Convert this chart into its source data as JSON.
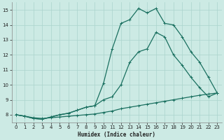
{
  "xlabel": "Humidex (Indice chaleur)",
  "xlim": [
    -0.5,
    23.5
  ],
  "ylim": [
    7.5,
    15.5
  ],
  "yticks": [
    8,
    9,
    10,
    11,
    12,
    13,
    14,
    15
  ],
  "xticks": [
    0,
    1,
    2,
    3,
    4,
    5,
    6,
    7,
    8,
    9,
    10,
    11,
    12,
    13,
    14,
    15,
    16,
    17,
    18,
    19,
    20,
    21,
    22,
    23
  ],
  "background_color": "#cceae4",
  "grid_color": "#aad4cc",
  "line_color": "#1a7060",
  "line1_x": [
    0,
    1,
    2,
    3,
    4,
    5,
    6,
    7,
    8,
    9,
    10,
    11,
    12,
    13,
    14,
    15,
    16,
    17,
    18,
    19,
    20,
    21,
    22,
    23
  ],
  "line1_y": [
    8.0,
    7.9,
    7.8,
    7.75,
    7.8,
    7.85,
    7.9,
    7.95,
    8.0,
    8.05,
    8.15,
    8.25,
    8.4,
    8.5,
    8.6,
    8.7,
    8.8,
    8.9,
    9.0,
    9.1,
    9.2,
    9.3,
    9.38,
    9.45
  ],
  "line2_x": [
    0,
    1,
    2,
    3,
    4,
    5,
    6,
    7,
    8,
    9,
    10,
    11,
    12,
    13,
    14,
    15,
    16,
    17,
    18,
    19,
    20,
    21,
    22,
    23
  ],
  "line2_y": [
    8.0,
    7.9,
    7.75,
    7.7,
    7.85,
    8.0,
    8.1,
    8.3,
    8.5,
    8.6,
    9.0,
    9.2,
    10.0,
    11.5,
    12.2,
    12.4,
    13.5,
    13.2,
    12.0,
    11.3,
    10.5,
    9.8,
    9.2,
    9.45
  ],
  "line3_x": [
    0,
    1,
    2,
    3,
    4,
    5,
    6,
    7,
    8,
    9,
    10,
    11,
    12,
    13,
    14,
    15,
    16,
    17,
    18,
    19,
    20,
    21,
    22,
    23
  ],
  "line3_y": [
    8.0,
    7.9,
    7.75,
    7.7,
    7.85,
    8.0,
    8.1,
    8.3,
    8.5,
    8.6,
    10.1,
    12.4,
    14.1,
    14.35,
    15.1,
    14.8,
    15.1,
    14.1,
    14.0,
    13.2,
    12.2,
    11.5,
    10.5,
    9.45
  ]
}
